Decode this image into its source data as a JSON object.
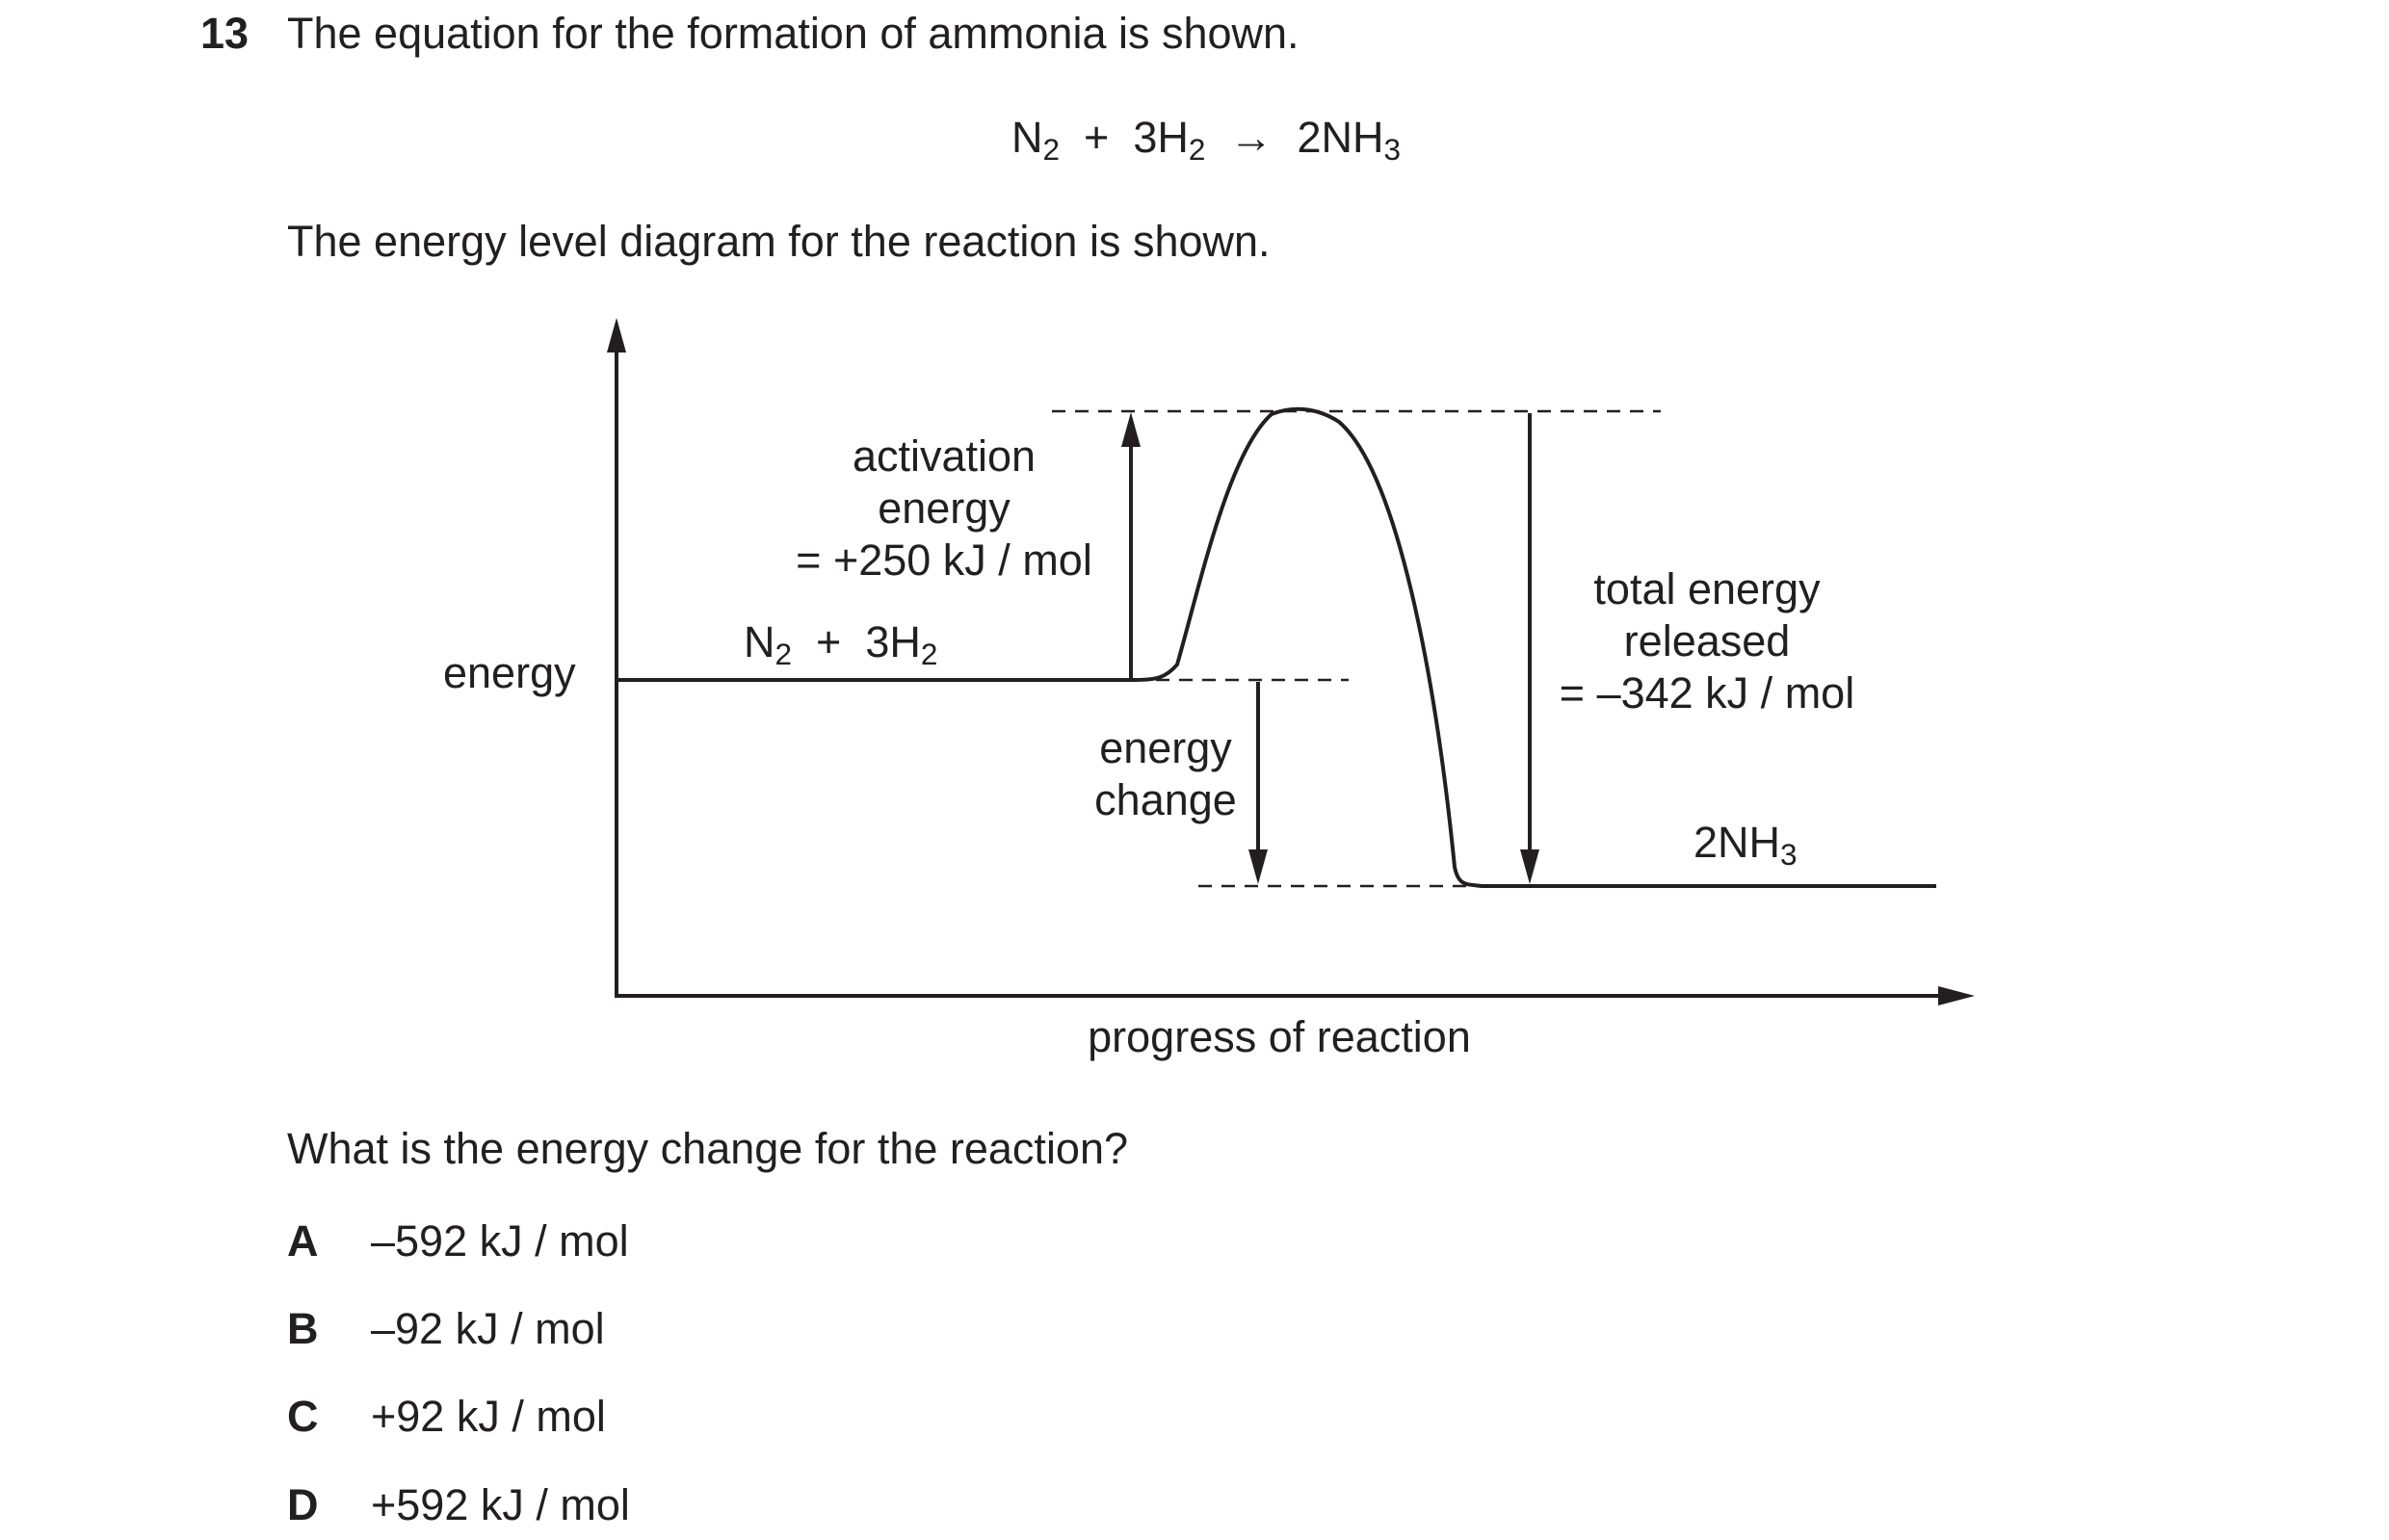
{
  "question": {
    "number": "13",
    "intro": "The equation for the formation of ammonia is shown.",
    "equation": {
      "reactant_1": "N",
      "reactant_1_sub": "2",
      "plus": "+",
      "reactant_2": "3H",
      "reactant_2_sub": "2",
      "arrow": "→",
      "product": "2NH",
      "product_sub": "3"
    },
    "diagram_intro": "The energy level diagram for the reaction is shown.",
    "prompt": "What is the energy change for the reaction?"
  },
  "diagram": {
    "y_axis_label": "energy",
    "x_axis_label": "progress of reaction",
    "reactants": {
      "a": "N",
      "a_sub": "2",
      "plus": "+",
      "b": "3H",
      "b_sub": "2"
    },
    "products": {
      "text": "2NH",
      "sub": "3"
    },
    "activation_energy": {
      "line1": "activation",
      "line2": "energy",
      "line3": "= +250 kJ / mol"
    },
    "energy_change": {
      "line1": "energy",
      "line2": "change"
    },
    "total_energy": {
      "line1": "total energy",
      "line2": "released",
      "line3": "= –342 kJ / mol"
    }
  },
  "options": [
    {
      "letter": "A",
      "value": "–592 kJ / mol"
    },
    {
      "letter": "B",
      "value": "–92 kJ / mol"
    },
    {
      "letter": "C",
      "value": "+92 kJ / mol"
    },
    {
      "letter": "D",
      "value": "+592 kJ / mol"
    }
  ]
}
